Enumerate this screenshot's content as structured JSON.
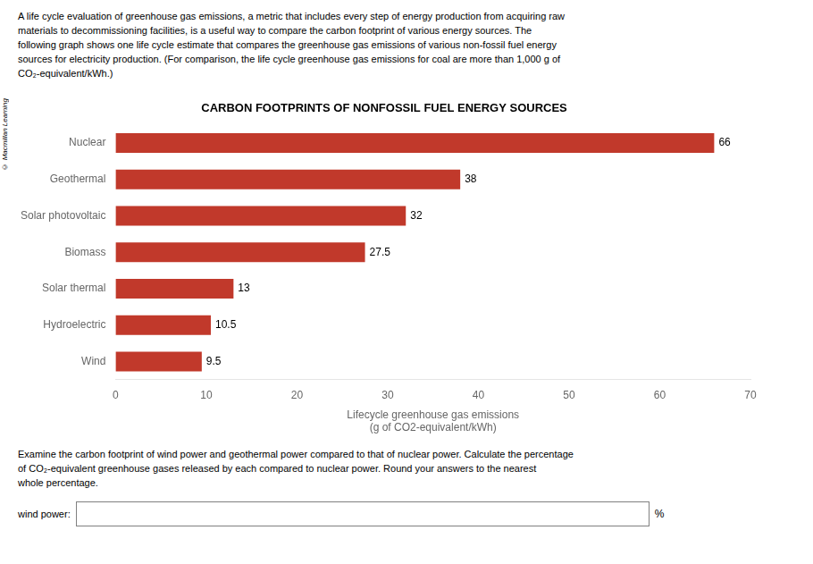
{
  "chart_data": {
    "type": "bar",
    "orientation": "horizontal",
    "title": "CARBON FOOTPRINTS OF NONFOSSIL FUEL ENERGY SOURCES",
    "categories": [
      "Nuclear",
      "Geothermal",
      "Solar photovoltaic",
      "Biomass",
      "Solar thermal",
      "Hydroelectric",
      "Wind"
    ],
    "values": [
      66,
      38,
      32,
      27.5,
      13,
      10.5,
      9.5
    ],
    "color": "#c1392b",
    "x_label": "Lifecycle greenhouse gas emissions\n(g of CO2-equivalent/kWh)",
    "xlim": [
      0,
      70
    ],
    "xticks": [
      0,
      10,
      20,
      30,
      40,
      50,
      60,
      70
    ],
    "grid": false,
    "data_labels": true,
    "annotations": [
      "A life cycle evaluation of greenhouse gas emissions, a metric that includes every step of energy production from acquiring raw",
      "materials to decommissioning facilities, is a useful way to compare the carbon footprint of various energy sources. The",
      "following graph shows one life cycle estimate that compares the greenhouse gas emissions of various non-fossil fuel energy",
      "sources for electricity production. (For comparison, the life cycle greenhouse gas emissions for coal are more than 1,000 g of",
      "CO₂-equivalent/kWh.)",
      "© Macmillan Learning",
      "Examine the carbon footprint of wind power and geothermal power compared to that of nuclear power. Calculate the percentage",
      "of CO₂-equivalent greenhouse gases released by each compared to nuclear power. Round your answers to the nearest",
      "whole percentage.",
      "wind power:",
      "%"
    ]
  }
}
